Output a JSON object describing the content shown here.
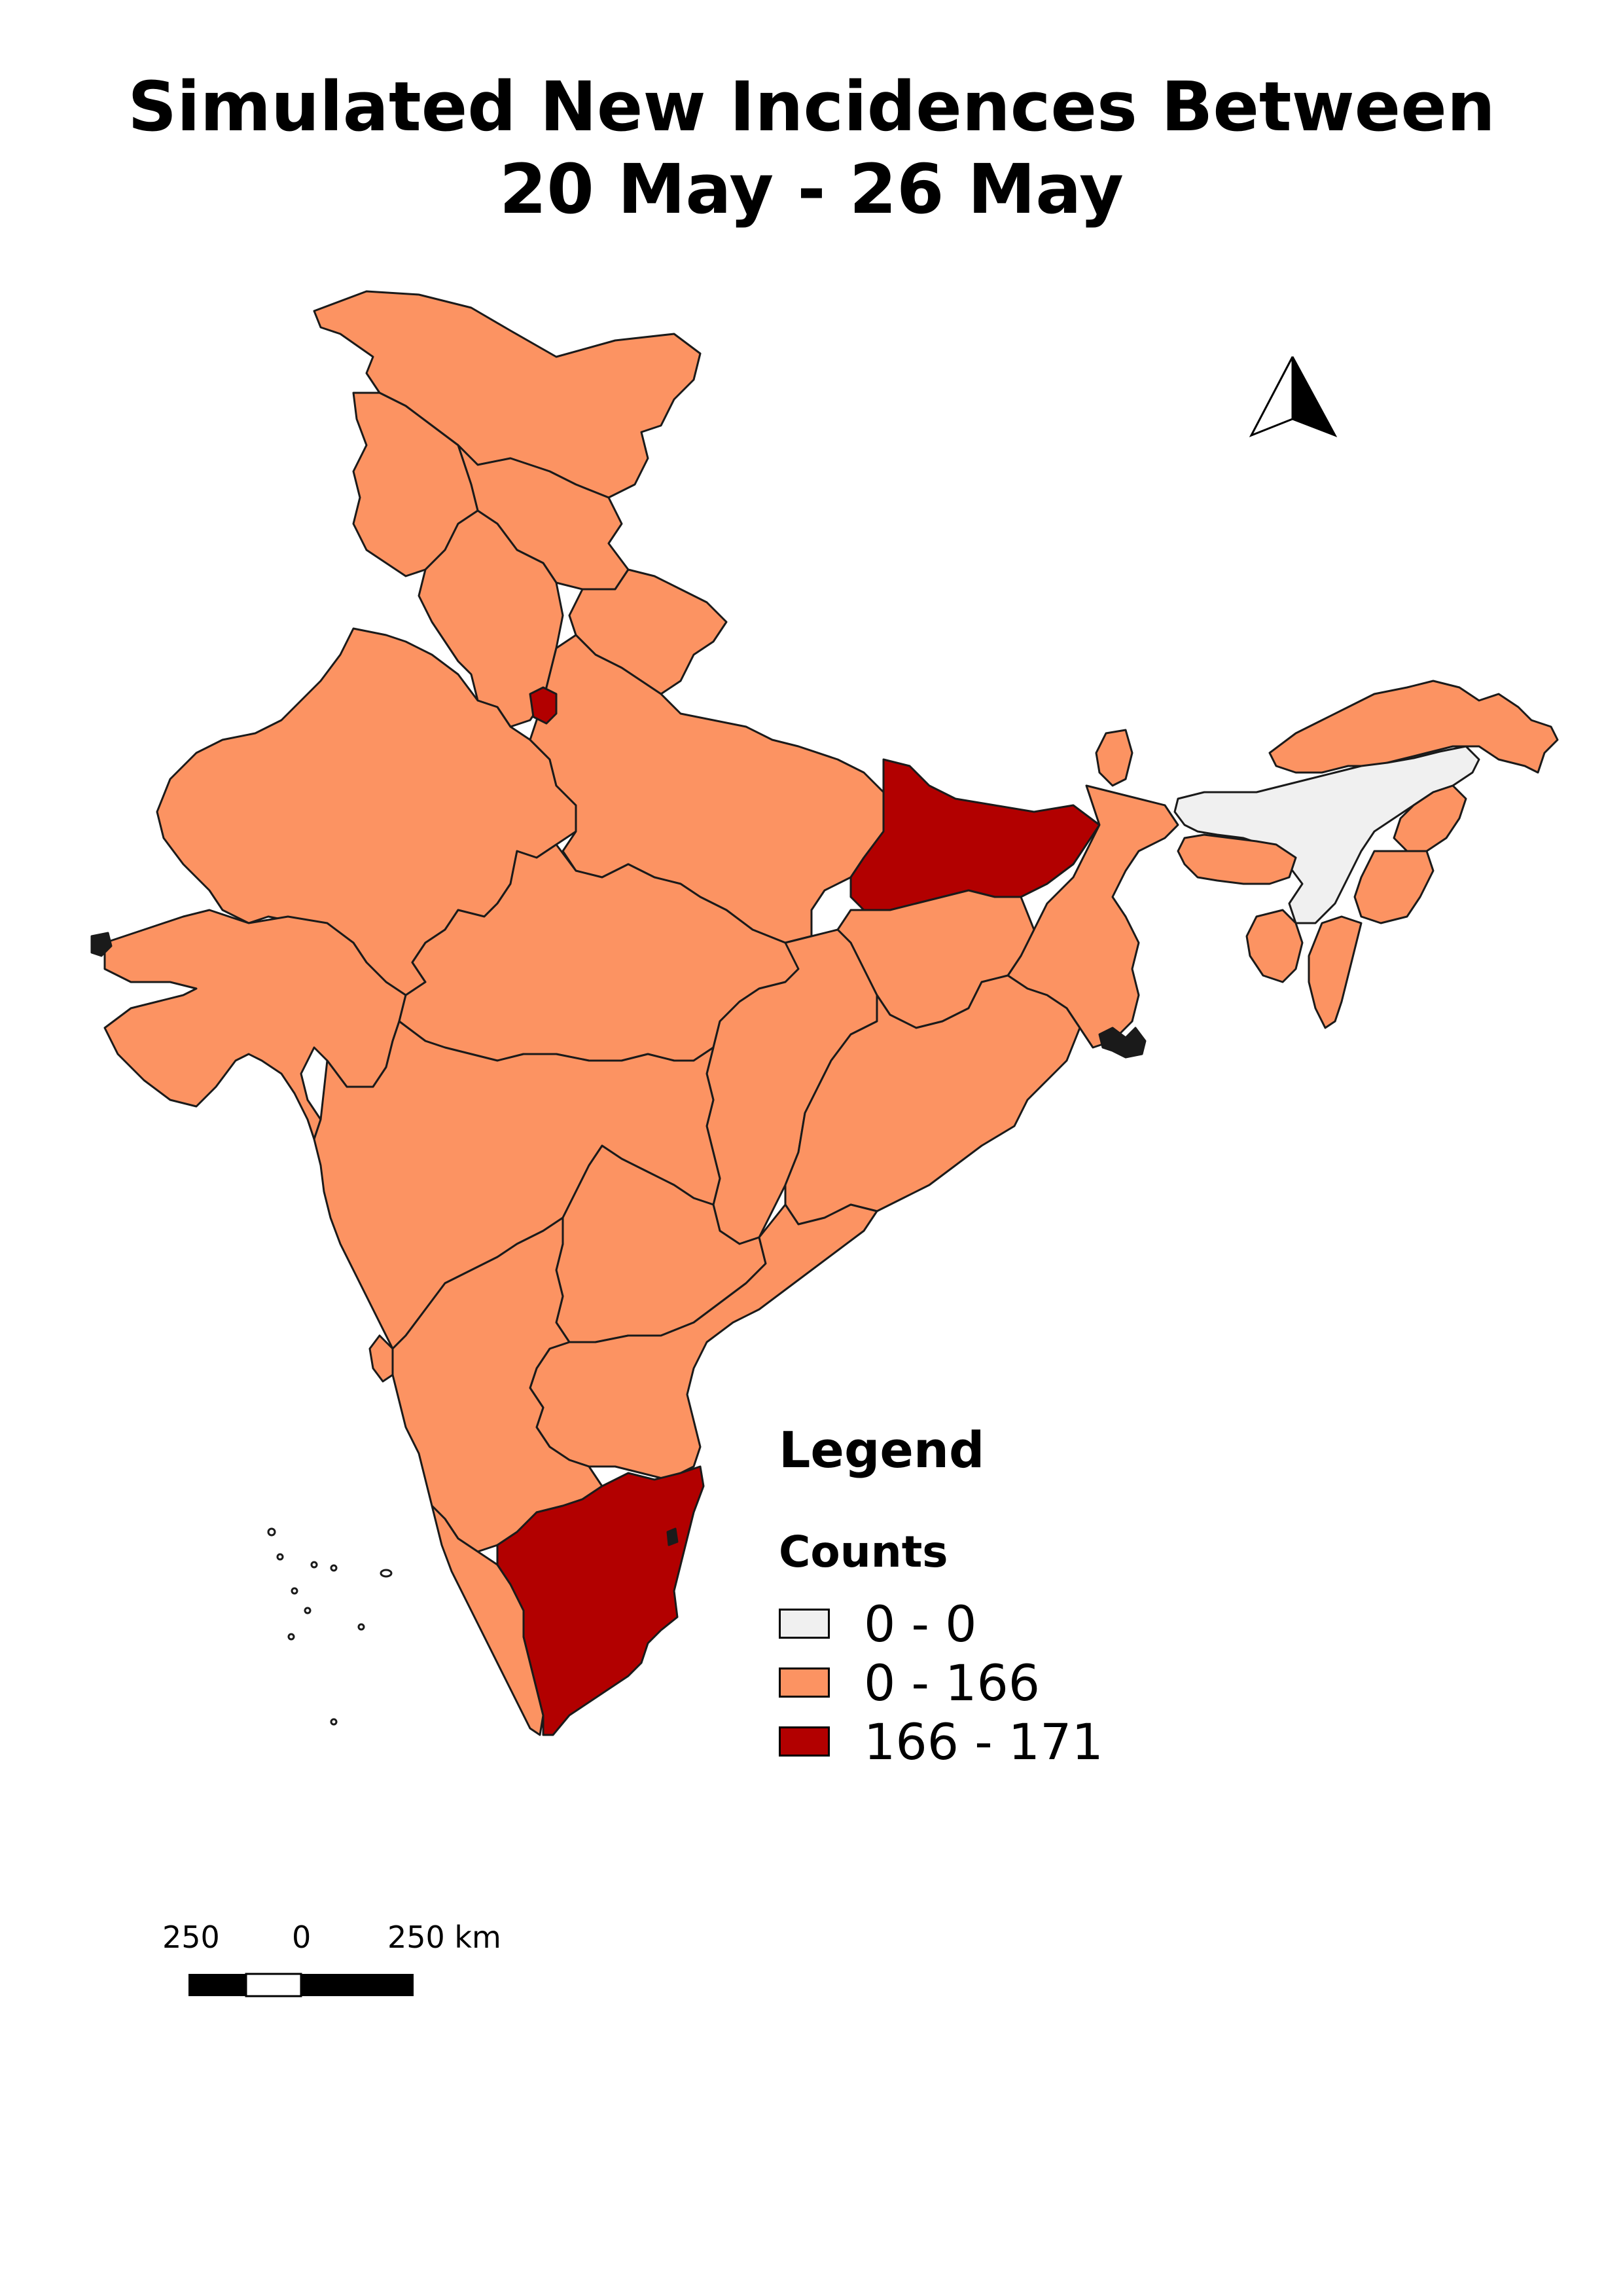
{
  "title": {
    "line1": "Simulated New Incidences Between",
    "line2": "20 May - 26 May"
  },
  "colors": {
    "low": "#f0f0f0",
    "mid": "#fc9362",
    "high": "#b20000",
    "outline": "#1a1a1a"
  },
  "map_regions": [
    {
      "name": "Jammu and Kashmir / Ladakh",
      "class": "0 - 166"
    },
    {
      "name": "Himachal Pradesh",
      "class": "0 - 166"
    },
    {
      "name": "Punjab",
      "class": "0 - 166"
    },
    {
      "name": "Uttarakhand",
      "class": "0 - 166"
    },
    {
      "name": "Haryana",
      "class": "0 - 166"
    },
    {
      "name": "Delhi",
      "class": "166 - 171"
    },
    {
      "name": "Rajasthan",
      "class": "0 - 166"
    },
    {
      "name": "Uttar Pradesh",
      "class": "0 - 166"
    },
    {
      "name": "Bihar",
      "class": "166 - 171"
    },
    {
      "name": "Gujarat",
      "class": "0 - 166"
    },
    {
      "name": "Madhya Pradesh",
      "class": "0 - 166"
    },
    {
      "name": "Jharkhand",
      "class": "0 - 166"
    },
    {
      "name": "West Bengal",
      "class": "0 - 166"
    },
    {
      "name": "Sikkim",
      "class": "0 - 166"
    },
    {
      "name": "Maharashtra",
      "class": "0 - 166"
    },
    {
      "name": "Chhattisgarh",
      "class": "0 - 166"
    },
    {
      "name": "Odisha",
      "class": "0 - 166"
    },
    {
      "name": "Telangana",
      "class": "0 - 166"
    },
    {
      "name": "Andhra Pradesh",
      "class": "0 - 166"
    },
    {
      "name": "Karnataka",
      "class": "0 - 166"
    },
    {
      "name": "Goa",
      "class": "0 - 166"
    },
    {
      "name": "Kerala",
      "class": "0 - 166"
    },
    {
      "name": "Tamil Nadu",
      "class": "166 - 171"
    },
    {
      "name": "Arunachal Pradesh",
      "class": "0 - 166"
    },
    {
      "name": "Assam",
      "class": "0 - 0"
    },
    {
      "name": "Meghalaya",
      "class": "0 - 166"
    },
    {
      "name": "Nagaland",
      "class": "0 - 166"
    },
    {
      "name": "Manipur",
      "class": "0 - 166"
    },
    {
      "name": "Mizoram",
      "class": "0 - 166"
    },
    {
      "name": "Tripura",
      "class": "0 - 166"
    }
  ],
  "legend": {
    "heading": "Legend",
    "subheading": "Counts",
    "items": [
      {
        "label": "0 - 0",
        "color": "#f0f0f0"
      },
      {
        "label": "0 - 166",
        "color": "#fc9362"
      },
      {
        "label": "166 - 171",
        "color": "#b20000"
      }
    ]
  },
  "scale_bar": {
    "left_label": "250",
    "mid_label": "0",
    "right_label": "250 km"
  },
  "north_arrow": {
    "icon": "north-arrow-icon"
  }
}
